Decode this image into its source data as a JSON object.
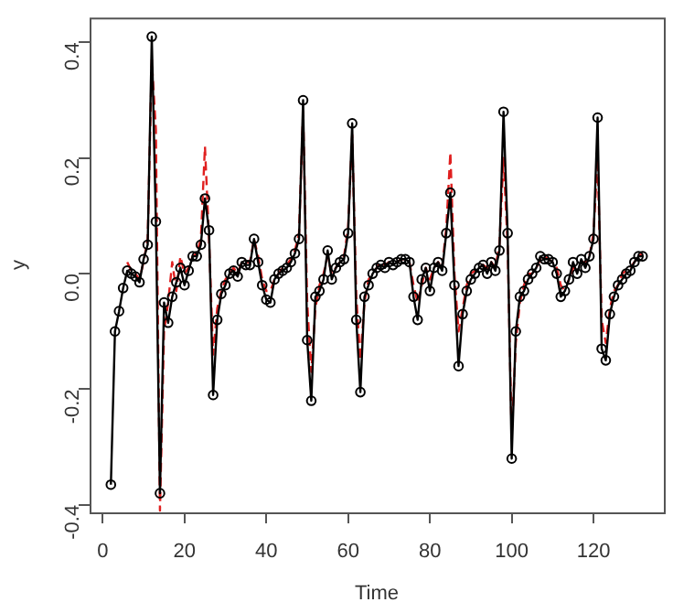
{
  "chart_data": {
    "type": "line",
    "xlabel": "Time",
    "ylabel": "y",
    "x": [
      2,
      3,
      4,
      5,
      6,
      7,
      8,
      9,
      10,
      11,
      12,
      13,
      14,
      15,
      16,
      17,
      18,
      19,
      20,
      21,
      22,
      23,
      24,
      25,
      26,
      27,
      28,
      29,
      30,
      31,
      32,
      33,
      34,
      35,
      36,
      37,
      38,
      39,
      40,
      41,
      42,
      43,
      44,
      45,
      46,
      47,
      48,
      49,
      50,
      51,
      52,
      53,
      54,
      55,
      56,
      57,
      58,
      59,
      60,
      61,
      62,
      63,
      64,
      65,
      66,
      67,
      68,
      69,
      70,
      71,
      72,
      73,
      74,
      75,
      76,
      77,
      78,
      79,
      80,
      81,
      82,
      83,
      84,
      85,
      86,
      87,
      88,
      89,
      90,
      91,
      92,
      93,
      94,
      95,
      96,
      97,
      98,
      99,
      100,
      101,
      102,
      103,
      104,
      105,
      106,
      107,
      108,
      109,
      110,
      111,
      112,
      113,
      114,
      115,
      116,
      117,
      118,
      119,
      120,
      121,
      122,
      123,
      124,
      125,
      126,
      127,
      128,
      129,
      130,
      131,
      132
    ],
    "series": [
      {
        "color": "#000000",
        "marker": "circle",
        "line_style": "solid",
        "values": [
          -0.365,
          -0.1,
          -0.065,
          -0.025,
          0.005,
          0.0,
          -0.005,
          -0.015,
          0.025,
          0.05,
          0.41,
          0.09,
          -0.38,
          -0.05,
          -0.085,
          -0.04,
          -0.015,
          0.01,
          -0.02,
          0.005,
          0.03,
          0.03,
          0.05,
          0.13,
          0.075,
          -0.21,
          -0.08,
          -0.035,
          -0.02,
          0.0,
          0.005,
          -0.005,
          0.02,
          0.015,
          0.015,
          0.06,
          0.02,
          -0.02,
          -0.045,
          -0.05,
          -0.01,
          0.0,
          0.005,
          0.01,
          0.02,
          0.035,
          0.06,
          0.3,
          -0.115,
          -0.22,
          -0.04,
          -0.03,
          -0.01,
          0.04,
          -0.01,
          0.01,
          0.02,
          0.025,
          0.07,
          0.26,
          -0.08,
          -0.205,
          -0.04,
          -0.02,
          0.0,
          0.01,
          0.015,
          0.01,
          0.02,
          0.015,
          0.02,
          0.025,
          0.025,
          0.02,
          -0.04,
          -0.08,
          -0.01,
          0.01,
          -0.03,
          0.01,
          0.02,
          0.005,
          0.07,
          0.14,
          -0.02,
          -0.16,
          -0.07,
          -0.03,
          -0.01,
          0.0,
          0.01,
          0.015,
          0.0,
          0.02,
          0.005,
          0.04,
          0.28,
          0.07,
          -0.32,
          -0.1,
          -0.04,
          -0.03,
          -0.01,
          0.0,
          0.01,
          0.03,
          0.025,
          0.025,
          0.02,
          0.0,
          -0.04,
          -0.03,
          -0.01,
          0.02,
          0.0,
          0.025,
          0.01,
          0.03,
          0.06,
          0.27,
          -0.13,
          -0.15,
          -0.07,
          -0.04,
          -0.02,
          -0.01,
          0.0,
          0.005,
          0.02,
          0.03,
          0.03
        ]
      },
      {
        "color": "#e02020",
        "marker": "none",
        "line_style": "dashed",
        "values": [
          null,
          null,
          null,
          null,
          0.02,
          0.005,
          0.0,
          -0.01,
          0.02,
          0.06,
          0.37,
          0.25,
          -0.41,
          -0.1,
          -0.05,
          0.02,
          -0.03,
          0.03,
          0.0,
          0.01,
          0.03,
          0.035,
          0.06,
          0.22,
          0.06,
          -0.14,
          -0.06,
          -0.03,
          -0.01,
          0.0,
          0.01,
          0.0,
          0.02,
          0.02,
          0.02,
          0.06,
          0.03,
          -0.01,
          -0.03,
          -0.03,
          -0.01,
          0.0,
          0.01,
          0.015,
          0.025,
          0.04,
          0.07,
          0.28,
          -0.05,
          -0.17,
          -0.06,
          -0.02,
          0.0,
          0.03,
          0.0,
          0.01,
          0.02,
          0.03,
          0.08,
          0.24,
          -0.04,
          -0.15,
          -0.05,
          -0.01,
          0.0,
          0.01,
          0.02,
          0.015,
          0.02,
          0.02,
          0.02,
          0.025,
          0.025,
          0.02,
          -0.02,
          -0.05,
          -0.02,
          0.01,
          -0.01,
          0.01,
          0.02,
          0.01,
          0.08,
          0.21,
          0.0,
          -0.1,
          -0.06,
          -0.02,
          0.0,
          0.005,
          0.01,
          0.015,
          0.01,
          0.02,
          0.01,
          0.05,
          0.2,
          0.05,
          -0.28,
          -0.12,
          -0.05,
          -0.02,
          0.0,
          0.0,
          0.01,
          0.025,
          0.03,
          0.025,
          0.02,
          0.01,
          -0.02,
          -0.03,
          -0.01,
          0.01,
          0.01,
          0.02,
          0.02,
          0.03,
          0.07,
          0.2,
          -0.08,
          -0.12,
          -0.06,
          -0.03,
          -0.02,
          0.0,
          0.005,
          0.01,
          0.02,
          0.03,
          0.035
        ]
      }
    ],
    "xlim": [
      -3.2,
      137.2
    ],
    "xticks": [
      0,
      20,
      40,
      60,
      80,
      100,
      120
    ],
    "ylim": [
      -0.413,
      0.443
    ],
    "yticks": [
      {
        "value": -0.4,
        "label": "-0.4"
      },
      {
        "value": -0.2,
        "label": "-0.2"
      },
      {
        "value": 0,
        "label": "0.0"
      },
      {
        "value": 0.2,
        "label": "0.2"
      },
      {
        "value": 0.4,
        "label": "0.4"
      }
    ],
    "grid": false,
    "legend": false
  }
}
